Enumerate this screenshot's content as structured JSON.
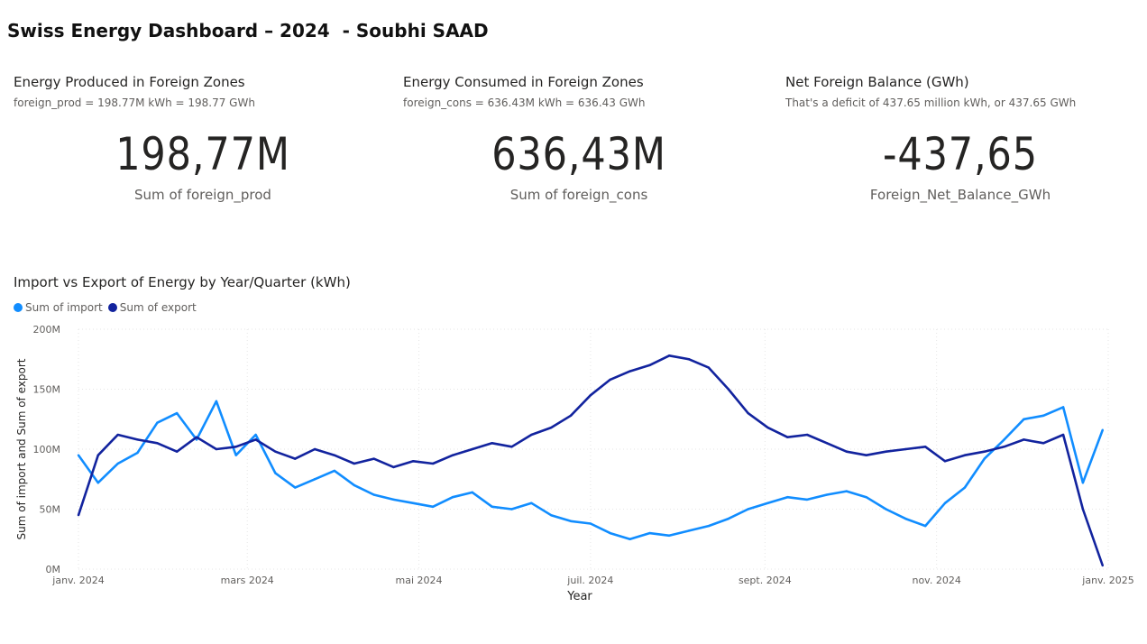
{
  "header": {
    "title": "Swiss Energy Dashboard – 2024  - Soubhi SAAD"
  },
  "cards": [
    {
      "title": "Energy Produced in Foreign Zones",
      "subtitle": "foreign_prod = 198.77M kWh = 198.77 GWh",
      "value": "198,77M",
      "label": "Sum of foreign_prod"
    },
    {
      "title": "Energy Consumed in Foreign Zones",
      "subtitle": "foreign_cons = 636.43M kWh = 636.43 GWh",
      "value": "636,43M",
      "label": "Sum of foreign_cons"
    },
    {
      "title": "Net Foreign Balance (GWh)",
      "subtitle": "That's a deficit of 437.65 million kWh, or 437.65 GWh",
      "value": "-437,65",
      "label": "Foreign_Net_Balance_GWh"
    }
  ],
  "chart_data": {
    "type": "line",
    "title": "Import vs Export of Energy by Year/Quarter (kWh)",
    "xlabel": "Year",
    "ylabel": "Sum of import and Sum of export",
    "ylim": [
      0,
      200
    ],
    "y_ticks": [
      {
        "value": 0,
        "label": "0M"
      },
      {
        "value": 50,
        "label": "50M"
      },
      {
        "value": 100,
        "label": "100M"
      },
      {
        "value": 150,
        "label": "150M"
      },
      {
        "value": 200,
        "label": "200M"
      }
    ],
    "x_ticks": [
      {
        "date": "2024-01-01",
        "label": "janv. 2024"
      },
      {
        "date": "2024-03-01",
        "label": "mars 2024"
      },
      {
        "date": "2024-05-01",
        "label": "mai 2024"
      },
      {
        "date": "2024-07-01",
        "label": "juil. 2024"
      },
      {
        "date": "2024-09-01",
        "label": "sept. 2024"
      },
      {
        "date": "2024-11-01",
        "label": "nov. 2024"
      },
      {
        "date": "2025-01-01",
        "label": "janv. 2025"
      }
    ],
    "x_label_every_days": 7,
    "x_start": "2024-01-01",
    "grid": true,
    "legend_position": "top-left",
    "series": [
      {
        "name": "Sum of import",
        "color": "#118DFF",
        "x": [
          "2024-01-01",
          "2024-01-08",
          "2024-01-15",
          "2024-01-22",
          "2024-01-29",
          "2024-02-05",
          "2024-02-12",
          "2024-02-19",
          "2024-02-26",
          "2024-03-04",
          "2024-03-11",
          "2024-03-18",
          "2024-03-25",
          "2024-04-01",
          "2024-04-08",
          "2024-04-15",
          "2024-04-22",
          "2024-04-29",
          "2024-05-06",
          "2024-05-13",
          "2024-05-20",
          "2024-05-27",
          "2024-06-03",
          "2024-06-10",
          "2024-06-17",
          "2024-06-24",
          "2024-07-01",
          "2024-07-08",
          "2024-07-15",
          "2024-07-22",
          "2024-07-29",
          "2024-08-05",
          "2024-08-12",
          "2024-08-19",
          "2024-08-26",
          "2024-09-02",
          "2024-09-09",
          "2024-09-16",
          "2024-09-23",
          "2024-09-30",
          "2024-10-07",
          "2024-10-14",
          "2024-10-21",
          "2024-10-28",
          "2024-11-04",
          "2024-11-11",
          "2024-11-18",
          "2024-11-25",
          "2024-12-02",
          "2024-12-09",
          "2024-12-16",
          "2024-12-23",
          "2024-12-30"
        ],
        "values": [
          95,
          72,
          88,
          97,
          122,
          130,
          108,
          140,
          95,
          112,
          80,
          68,
          75,
          82,
          70,
          62,
          58,
          55,
          52,
          60,
          64,
          52,
          50,
          55,
          45,
          40,
          38,
          30,
          25,
          30,
          28,
          32,
          36,
          42,
          50,
          55,
          60,
          58,
          62,
          65,
          60,
          50,
          42,
          36,
          55,
          68,
          92,
          108,
          125,
          128,
          135,
          72,
          116
        ]
      },
      {
        "name": "Sum of export",
        "color": "#12239E",
        "x": [
          "2024-01-01",
          "2024-01-08",
          "2024-01-15",
          "2024-01-22",
          "2024-01-29",
          "2024-02-05",
          "2024-02-12",
          "2024-02-19",
          "2024-02-26",
          "2024-03-04",
          "2024-03-11",
          "2024-03-18",
          "2024-03-25",
          "2024-04-01",
          "2024-04-08",
          "2024-04-15",
          "2024-04-22",
          "2024-04-29",
          "2024-05-06",
          "2024-05-13",
          "2024-05-20",
          "2024-05-27",
          "2024-06-03",
          "2024-06-10",
          "2024-06-17",
          "2024-06-24",
          "2024-07-01",
          "2024-07-08",
          "2024-07-15",
          "2024-07-22",
          "2024-07-29",
          "2024-08-05",
          "2024-08-12",
          "2024-08-19",
          "2024-08-26",
          "2024-09-02",
          "2024-09-09",
          "2024-09-16",
          "2024-09-23",
          "2024-09-30",
          "2024-10-07",
          "2024-10-14",
          "2024-10-21",
          "2024-10-28",
          "2024-11-04",
          "2024-11-11",
          "2024-11-18",
          "2024-11-25",
          "2024-12-02",
          "2024-12-09",
          "2024-12-16",
          "2024-12-23",
          "2024-12-30"
        ],
        "values": [
          45,
          95,
          112,
          108,
          105,
          98,
          110,
          100,
          102,
          108,
          98,
          92,
          100,
          95,
          88,
          92,
          85,
          90,
          88,
          95,
          100,
          105,
          102,
          112,
          118,
          128,
          145,
          158,
          165,
          170,
          178,
          175,
          168,
          150,
          130,
          118,
          110,
          112,
          105,
          98,
          95,
          98,
          100,
          102,
          90,
          95,
          98,
          102,
          108,
          105,
          112,
          50,
          3
        ]
      }
    ]
  }
}
